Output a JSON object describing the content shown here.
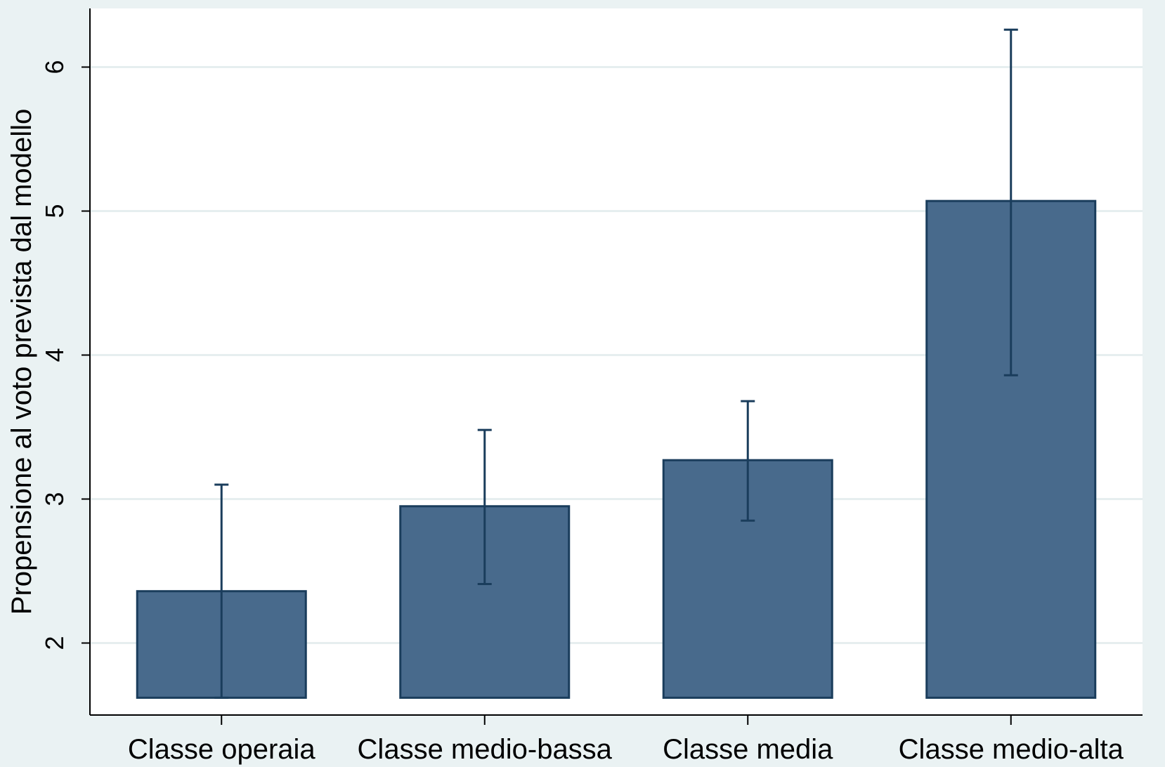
{
  "chart_data": {
    "type": "bar",
    "title": "",
    "xlabel": "",
    "ylabel": "Propensione al voto prevista dal modello",
    "categories": [
      "Classe operaia",
      "Classe medio-bassa",
      "Classe media",
      "Classe medio-alta"
    ],
    "values": [
      2.36,
      2.95,
      3.27,
      5.07
    ],
    "error_low": [
      1.62,
      2.41,
      2.85,
      3.86
    ],
    "error_high": [
      3.1,
      3.48,
      3.68,
      6.26
    ],
    "ylim": [
      1.5,
      6.4
    ],
    "yticks": [
      2,
      3,
      4,
      5,
      6
    ],
    "grid": true,
    "colors": {
      "bar_fill": "#486a8c",
      "bar_stroke": "#1a3d5c",
      "error_bar": "#1a3d5c",
      "plot_background": "#ffffff",
      "outer_background": "#eaf2f3",
      "grid": "#e6eeef"
    }
  }
}
